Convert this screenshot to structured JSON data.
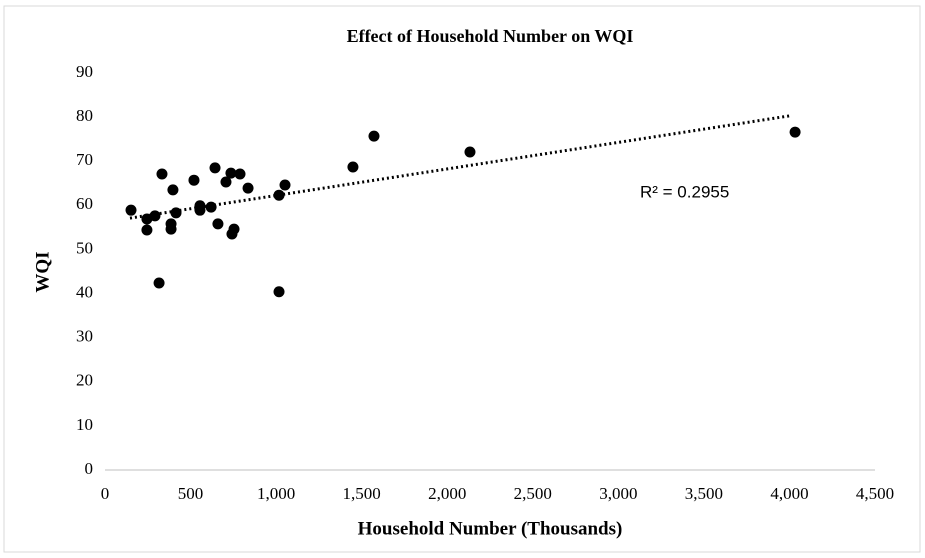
{
  "chart_data": {
    "type": "scatter",
    "title": "Effect of Household Number on WQI",
    "x_label": "Household Number (Thousands)",
    "y_label": "WQI",
    "annotation": "R² = 0.2955",
    "color": "#000000",
    "x": [
      152,
      245,
      245,
      292,
      333,
      316,
      386,
      386,
      397,
      415,
      520,
      555,
      555,
      620,
      643,
      660,
      707,
      736,
      742,
      754,
      789,
      836,
      1017,
      1017,
      1052,
      1449,
      1572,
      2133,
      4033
    ],
    "values": [
      58.9,
      56.9,
      54.4,
      57.6,
      67.1,
      42.4,
      55.8,
      54.6,
      63.5,
      58.3,
      65.7,
      59.9,
      58.9,
      59.6,
      68.5,
      55.8,
      65.3,
      67.3,
      53.5,
      54.6,
      67.1,
      63.9,
      40.4,
      62.3,
      64.6,
      68.7,
      75.7,
      72.1,
      76.6
    ],
    "trendline": {
      "x": [
        146,
        4003
      ],
      "values": [
        57.1,
        80.3
      ]
    },
    "xlim": [
      0,
      4500
    ],
    "ylim": [
      0,
      90
    ],
    "xticks": [
      0,
      500,
      {
        "value": 1000,
        "label": "1,000"
      },
      {
        "value": 1500,
        "label": "1,500"
      },
      {
        "value": 2000,
        "label": "2,000"
      },
      {
        "value": 2500,
        "label": "2,500"
      },
      {
        "value": 3000,
        "label": "3,000"
      },
      {
        "value": 3500,
        "label": "3,500"
      },
      {
        "value": 4000,
        "label": "4,000"
      },
      {
        "value": 4500,
        "label": "4,500"
      }
    ],
    "yticks": [
      0,
      10,
      20,
      30,
      40,
      50,
      60,
      70,
      80,
      90
    ]
  }
}
